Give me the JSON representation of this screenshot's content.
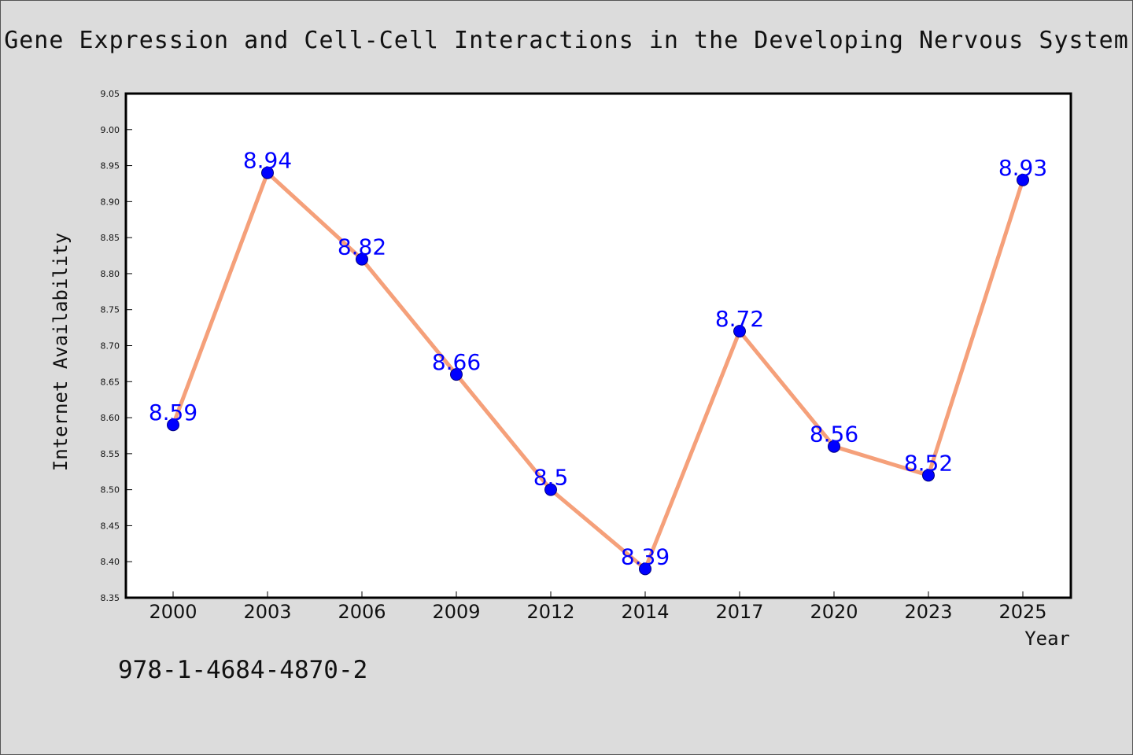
{
  "title": "Gene Expression and Cell-Cell Interactions in the Developing Nervous System",
  "footer_text": "978-1-4684-4870-2",
  "colors": {
    "background": "#dcdcdc",
    "plot_background": "#ffffff",
    "line": "#f5a07a",
    "marker": "#0000ff",
    "data_label": "#0000ff",
    "text": "#111111"
  },
  "chart_data": {
    "type": "line",
    "title": "Gene Expression and Cell-Cell Interactions in the Developing Nervous System",
    "xlabel": "Year",
    "ylabel": "Internet Availability",
    "categories": [
      "2000",
      "2003",
      "2006",
      "2009",
      "2012",
      "2014",
      "2017",
      "2020",
      "2023",
      "2025"
    ],
    "series": [
      {
        "values": [
          8.59,
          8.94,
          8.82,
          8.66,
          8.5,
          8.39,
          8.72,
          8.56,
          8.52,
          8.93
        ],
        "data_labels": [
          "8.59",
          "8.94",
          "8.82",
          "8.66",
          "8.5",
          "8.39",
          "8.72",
          "8.56",
          "8.52",
          "8.93"
        ]
      }
    ],
    "ylim": [
      8.35,
      9.05
    ],
    "yticks": [
      "8.35",
      "8.40",
      "8.45",
      "8.50",
      "8.55",
      "8.60",
      "8.65",
      "8.70",
      "8.75",
      "8.80",
      "8.85",
      "8.90",
      "8.95",
      "9.00",
      "9.05"
    ],
    "grid": false,
    "legend": "none"
  }
}
